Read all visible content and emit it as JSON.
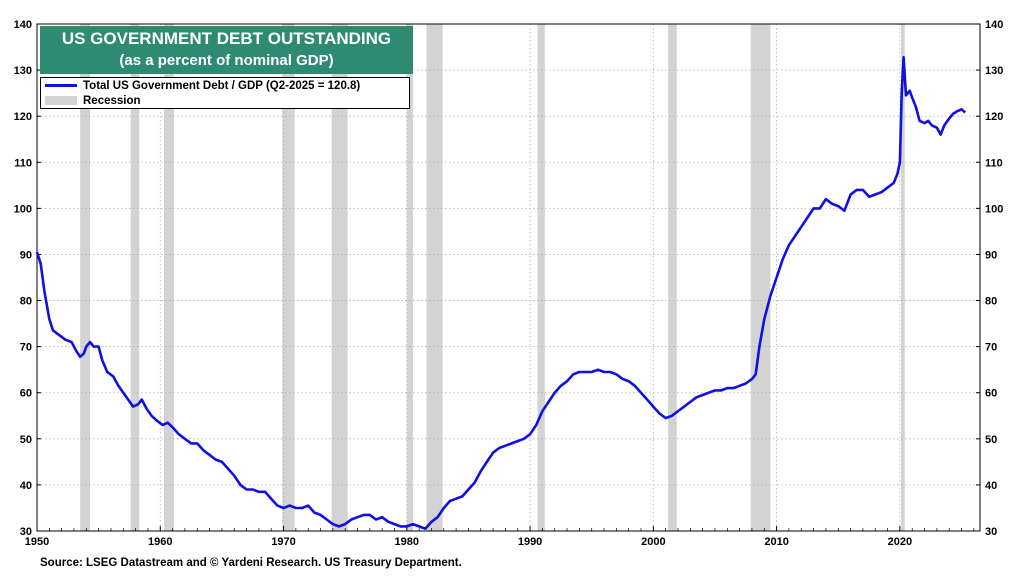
{
  "chart_data": {
    "type": "line",
    "title": "US GOVERNMENT DEBT OUTSTANDING",
    "subtitle": "(as a percent of nominal GDP)",
    "xlim": [
      1950,
      2026.5
    ],
    "ylim": [
      30,
      140
    ],
    "x_ticks": [
      1950,
      1960,
      1970,
      1980,
      1990,
      2000,
      2010,
      2020
    ],
    "y_ticks": [
      30,
      40,
      50,
      60,
      70,
      80,
      90,
      100,
      110,
      120,
      130,
      140
    ],
    "grid": true,
    "legend_position": "top-left",
    "series": [
      {
        "name": "Total US Government Debt / GDP (Q2-2025 = 120.8)",
        "color": "#1010e0",
        "points": [
          [
            1950.0,
            90.5
          ],
          [
            1950.3,
            88
          ],
          [
            1950.6,
            82
          ],
          [
            1951.0,
            76
          ],
          [
            1951.3,
            73.5
          ],
          [
            1951.8,
            72.5
          ],
          [
            1952.3,
            71.5
          ],
          [
            1952.8,
            71
          ],
          [
            1953.2,
            69
          ],
          [
            1953.5,
            67.8
          ],
          [
            1953.8,
            68.5
          ],
          [
            1954.0,
            70
          ],
          [
            1954.3,
            71
          ],
          [
            1954.6,
            70
          ],
          [
            1955.0,
            70
          ],
          [
            1955.3,
            67
          ],
          [
            1955.7,
            64.5
          ],
          [
            1956.2,
            63.5
          ],
          [
            1956.6,
            61.5
          ],
          [
            1957.0,
            60
          ],
          [
            1957.4,
            58.5
          ],
          [
            1957.8,
            57
          ],
          [
            1958.2,
            57.5
          ],
          [
            1958.5,
            58.5
          ],
          [
            1958.9,
            56.5
          ],
          [
            1959.3,
            55
          ],
          [
            1959.7,
            54
          ],
          [
            1960.2,
            53
          ],
          [
            1960.6,
            53.5
          ],
          [
            1961.0,
            52.5
          ],
          [
            1961.5,
            51
          ],
          [
            1962.0,
            50
          ],
          [
            1962.5,
            49
          ],
          [
            1963.0,
            49
          ],
          [
            1963.5,
            47.5
          ],
          [
            1964.0,
            46.5
          ],
          [
            1964.5,
            45.5
          ],
          [
            1965.0,
            45
          ],
          [
            1965.5,
            43.5
          ],
          [
            1966.0,
            42
          ],
          [
            1966.5,
            40
          ],
          [
            1967.0,
            39
          ],
          [
            1967.5,
            39
          ],
          [
            1968.0,
            38.5
          ],
          [
            1968.5,
            38.5
          ],
          [
            1969.0,
            37
          ],
          [
            1969.5,
            35.5
          ],
          [
            1970.0,
            35
          ],
          [
            1970.5,
            35.5
          ],
          [
            1971.0,
            35
          ],
          [
            1971.5,
            35
          ],
          [
            1972.0,
            35.5
          ],
          [
            1972.5,
            34
          ],
          [
            1973.0,
            33.5
          ],
          [
            1973.5,
            32.5
          ],
          [
            1974.0,
            31.5
          ],
          [
            1974.5,
            31
          ],
          [
            1975.0,
            31.5
          ],
          [
            1975.5,
            32.5
          ],
          [
            1976.0,
            33
          ],
          [
            1976.5,
            33.5
          ],
          [
            1977.0,
            33.5
          ],
          [
            1977.5,
            32.5
          ],
          [
            1978.0,
            33
          ],
          [
            1978.5,
            32
          ],
          [
            1979.0,
            31.5
          ],
          [
            1979.5,
            31
          ],
          [
            1980.0,
            31
          ],
          [
            1980.5,
            31.5
          ],
          [
            1981.0,
            31
          ],
          [
            1981.5,
            30.5
          ],
          [
            1982.0,
            32
          ],
          [
            1982.5,
            33
          ],
          [
            1983.0,
            35
          ],
          [
            1983.5,
            36.5
          ],
          [
            1984.0,
            37
          ],
          [
            1984.5,
            37.5
          ],
          [
            1985.0,
            39
          ],
          [
            1985.5,
            40.5
          ],
          [
            1986.0,
            43
          ],
          [
            1986.5,
            45
          ],
          [
            1987.0,
            47
          ],
          [
            1987.5,
            48
          ],
          [
            1988.0,
            48.5
          ],
          [
            1988.5,
            49
          ],
          [
            1989.0,
            49.5
          ],
          [
            1989.5,
            50
          ],
          [
            1990.0,
            51
          ],
          [
            1990.5,
            53
          ],
          [
            1991.0,
            56
          ],
          [
            1991.5,
            58
          ],
          [
            1992.0,
            60
          ],
          [
            1992.5,
            61.5
          ],
          [
            1993.0,
            62.5
          ],
          [
            1993.5,
            64
          ],
          [
            1994.0,
            64.5
          ],
          [
            1994.5,
            64.5
          ],
          [
            1995.0,
            64.5
          ],
          [
            1995.5,
            65
          ],
          [
            1996.0,
            64.5
          ],
          [
            1996.5,
            64.5
          ],
          [
            1997.0,
            64
          ],
          [
            1997.5,
            63
          ],
          [
            1998.0,
            62.5
          ],
          [
            1998.5,
            61.5
          ],
          [
            1999.0,
            60
          ],
          [
            1999.5,
            58.5
          ],
          [
            2000.0,
            57
          ],
          [
            2000.5,
            55.5
          ],
          [
            2001.0,
            54.5
          ],
          [
            2001.5,
            55
          ],
          [
            2002.0,
            56
          ],
          [
            2002.5,
            57
          ],
          [
            2003.0,
            58
          ],
          [
            2003.5,
            59
          ],
          [
            2004.0,
            59.5
          ],
          [
            2004.5,
            60
          ],
          [
            2005.0,
            60.5
          ],
          [
            2005.5,
            60.5
          ],
          [
            2006.0,
            61
          ],
          [
            2006.5,
            61
          ],
          [
            2007.0,
            61.5
          ],
          [
            2007.5,
            62
          ],
          [
            2008.0,
            63
          ],
          [
            2008.3,
            64
          ],
          [
            2008.6,
            70
          ],
          [
            2009.0,
            76
          ],
          [
            2009.5,
            81
          ],
          [
            2010.0,
            85
          ],
          [
            2010.5,
            89
          ],
          [
            2011.0,
            92
          ],
          [
            2011.5,
            94
          ],
          [
            2012.0,
            96
          ],
          [
            2012.5,
            98
          ],
          [
            2013.0,
            100
          ],
          [
            2013.5,
            100
          ],
          [
            2014.0,
            102
          ],
          [
            2014.5,
            101
          ],
          [
            2015.0,
            100.5
          ],
          [
            2015.5,
            99.5
          ],
          [
            2016.0,
            103
          ],
          [
            2016.5,
            104
          ],
          [
            2017.0,
            104
          ],
          [
            2017.5,
            102.5
          ],
          [
            2018.0,
            103
          ],
          [
            2018.5,
            103.5
          ],
          [
            2019.0,
            104.5
          ],
          [
            2019.5,
            105.5
          ],
          [
            2019.8,
            107.5
          ],
          [
            2020.0,
            110
          ],
          [
            2020.15,
            125
          ],
          [
            2020.3,
            132.8
          ],
          [
            2020.5,
            124.5
          ],
          [
            2020.8,
            125.5
          ],
          [
            2021.0,
            124
          ],
          [
            2021.3,
            122
          ],
          [
            2021.6,
            119
          ],
          [
            2022.0,
            118.5
          ],
          [
            2022.3,
            119
          ],
          [
            2022.6,
            118
          ],
          [
            2023.0,
            117.5
          ],
          [
            2023.3,
            116
          ],
          [
            2023.6,
            118
          ],
          [
            2024.0,
            119.5
          ],
          [
            2024.3,
            120.5
          ],
          [
            2024.6,
            121
          ],
          [
            2025.0,
            121.5
          ],
          [
            2025.3,
            120.8
          ]
        ]
      }
    ],
    "recession_label": "Recession",
    "recession_color": "#d3d3d3",
    "recessions": [
      [
        1953.5,
        1954.3
      ],
      [
        1957.6,
        1958.3
      ],
      [
        1960.3,
        1961.1
      ],
      [
        1969.9,
        1970.9
      ],
      [
        1973.9,
        1975.2
      ],
      [
        1980.0,
        1980.5
      ],
      [
        1981.6,
        1982.9
      ],
      [
        1990.6,
        1991.2
      ],
      [
        2001.2,
        2001.9
      ],
      [
        2007.9,
        2009.5
      ],
      [
        2020.1,
        2020.4
      ]
    ],
    "source": "Source: LSEG Datastream and © Yardeni Research. US Treasury Department."
  }
}
